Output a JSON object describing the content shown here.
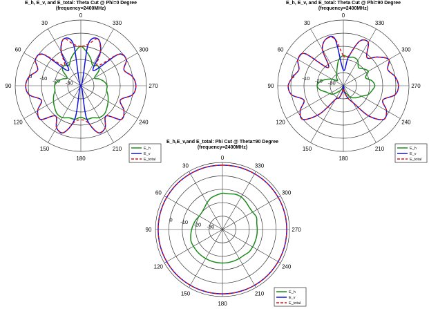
{
  "chart_data": [
    {
      "type": "polar-line",
      "title": "E_h, E_v, and E_total: Theta Cut @ Phi=0 Degree",
      "subtitle": "(frequency=2400MHz)",
      "angle_labels": [
        "0",
        "30",
        "60",
        "90",
        "120",
        "150",
        "180",
        "210",
        "240",
        "270",
        "300",
        "330"
      ],
      "radial_labels": [
        "0",
        "-10",
        "-20",
        "-30"
      ],
      "rlim": [
        -40,
        10
      ],
      "angle_direction": "counterclockwise, 0 at top",
      "grid": true,
      "legend_placement": "bottom-right",
      "angles_deg": [
        0,
        10,
        20,
        30,
        40,
        50,
        60,
        70,
        80,
        90,
        100,
        110,
        120,
        130,
        140,
        150,
        160,
        170,
        180,
        190,
        200,
        210,
        220,
        230,
        240,
        250,
        260,
        270,
        280,
        290,
        300,
        310,
        320,
        330,
        340,
        350
      ],
      "series": [
        {
          "name": "E_h",
          "color": "#1a8a1a",
          "dash": "solid",
          "values": [
            -10,
            -14,
            -18,
            -22,
            -20,
            -22,
            -28,
            -25,
            -22,
            -20,
            -20,
            -18,
            -16,
            -14,
            -12,
            -12,
            -14,
            -14,
            -16,
            -14,
            -14,
            -12,
            -12,
            -14,
            -16,
            -18,
            -20,
            -20,
            -22,
            -25,
            -28,
            -22,
            -20,
            -22,
            -18,
            -14
          ]
        },
        {
          "name": "E_v",
          "color": "#1010e0",
          "dash": "solid",
          "values": [
            -40,
            -8,
            -2,
            -10,
            -25,
            -3,
            0,
            -5,
            0,
            2,
            0,
            -8,
            -2,
            0,
            -10,
            -3,
            -2,
            -15,
            -40,
            -15,
            -2,
            -3,
            -10,
            0,
            -2,
            -8,
            0,
            2,
            0,
            -5,
            0,
            -3,
            -25,
            -10,
            -2,
            -8
          ]
        },
        {
          "name": "E_total",
          "color": "#e01010",
          "dash": "dashed",
          "values": [
            -10,
            -8,
            -2,
            -10,
            -20,
            -3,
            0,
            -5,
            0,
            2,
            0,
            -8,
            -2,
            0,
            -10,
            -3,
            -2,
            -12,
            -14,
            -12,
            -2,
            -3,
            -10,
            0,
            -2,
            -8,
            0,
            2,
            0,
            -5,
            0,
            -3,
            -20,
            -10,
            -2,
            -8
          ]
        }
      ]
    },
    {
      "type": "polar-line",
      "title": "E_h, E_v, and E_total: Theta Cut @ Phi=90 Degree",
      "subtitle": "(frequency=2400MHz)",
      "angle_labels": [
        "0",
        "30",
        "60",
        "90",
        "120",
        "150",
        "180",
        "210",
        "240",
        "270",
        "300",
        "330"
      ],
      "radial_labels": [
        "0",
        "-10",
        "-20",
        "-30"
      ],
      "rlim": [
        -40,
        10
      ],
      "angle_direction": "counterclockwise, 0 at top",
      "grid": true,
      "legend_placement": "bottom-right",
      "angles_deg": [
        0,
        10,
        20,
        30,
        40,
        50,
        60,
        70,
        80,
        90,
        100,
        110,
        120,
        130,
        140,
        150,
        160,
        170,
        180,
        190,
        200,
        210,
        220,
        230,
        240,
        250,
        260,
        270,
        280,
        290,
        300,
        310,
        320,
        330,
        340,
        350
      ],
      "series": [
        {
          "name": "E_h",
          "color": "#1a8a1a",
          "dash": "solid",
          "values": [
            -17,
            -20,
            -26,
            -30,
            -32,
            -34,
            -30,
            -26,
            -22,
            -20,
            -22,
            -26,
            -28,
            -30,
            -34,
            -36,
            -38,
            -40,
            -38,
            -36,
            -34,
            -30,
            -28,
            -26,
            -24,
            -20,
            -18,
            -16,
            -18,
            -22,
            -18,
            -20,
            -22,
            -18,
            -17,
            -18
          ]
        },
        {
          "name": "E_v",
          "color": "#1010e0",
          "dash": "solid",
          "values": [
            -28,
            -4,
            -2,
            -8,
            -22,
            -2,
            0,
            -4,
            -1,
            2,
            0,
            -8,
            -2,
            0,
            -12,
            -28,
            -30,
            -35,
            -40,
            -35,
            -30,
            -25,
            -10,
            0,
            -2,
            -8,
            0,
            2,
            0,
            -4,
            0,
            -6,
            -12,
            -2,
            -4,
            -18
          ]
        },
        {
          "name": "E_total",
          "color": "#e01010",
          "dash": "dashed",
          "values": [
            -17,
            -4,
            -2,
            -8,
            -22,
            -2,
            0,
            -4,
            -1,
            2,
            0,
            -8,
            -2,
            0,
            -12,
            -28,
            -30,
            -35,
            -38,
            -35,
            -30,
            -25,
            -10,
            0,
            -2,
            -8,
            0,
            2,
            0,
            -4,
            0,
            -6,
            -12,
            -2,
            -4,
            -17
          ]
        }
      ]
    },
    {
      "type": "polar-line",
      "title": "E_h,E_v,and E_total: Phi Cut @ Theta=90 Degree",
      "subtitle": "(frequency=2400MHz)",
      "angle_labels": [
        "0",
        "30",
        "60",
        "90",
        "120",
        "150",
        "180",
        "210",
        "240",
        "270",
        "300",
        "330"
      ],
      "radial_labels": [
        "0",
        "-10",
        "-20",
        "-30"
      ],
      "rlim": [
        -40,
        10
      ],
      "angle_direction": "counterclockwise, 0 at top",
      "grid": true,
      "legend_placement": "bottom-right",
      "angles_deg": [
        0,
        10,
        20,
        30,
        40,
        50,
        60,
        70,
        80,
        90,
        100,
        110,
        120,
        130,
        140,
        150,
        160,
        170,
        180,
        190,
        200,
        210,
        220,
        230,
        240,
        250,
        260,
        270,
        280,
        290,
        300,
        310,
        320,
        330,
        340,
        350
      ],
      "series": [
        {
          "name": "E_h",
          "color": "#1a8a1a",
          "dash": "solid",
          "values": [
            -13,
            -14,
            -15,
            -17,
            -19,
            -20,
            -20,
            -19,
            -18,
            -17,
            -16,
            -15,
            -15,
            -15,
            -15,
            -15,
            -15,
            -15,
            -15,
            -15,
            -15,
            -15,
            -15,
            -14,
            -14,
            -14,
            -14,
            -14,
            -14,
            -13,
            -14,
            -14,
            -13,
            -12,
            -12,
            -13
          ]
        },
        {
          "name": "E_v",
          "color": "#1010e0",
          "dash": "solid",
          "values": [
            8,
            8,
            8,
            8,
            8,
            8,
            8,
            8,
            8,
            8,
            8,
            8,
            8,
            8,
            8,
            8,
            8,
            8,
            8,
            8,
            8,
            8,
            8,
            8,
            8,
            8,
            8,
            8,
            8,
            8,
            8,
            8,
            8,
            8,
            8,
            8
          ]
        },
        {
          "name": "E_total",
          "color": "#e01010",
          "dash": "dashed",
          "values": [
            8,
            8,
            8,
            8,
            8,
            8,
            8,
            8,
            8,
            8,
            8,
            8,
            8,
            8,
            8,
            8,
            8,
            8,
            8,
            8,
            8,
            8,
            8,
            8,
            8,
            8,
            8,
            8,
            8,
            8,
            8,
            8,
            8,
            8,
            8,
            8
          ]
        }
      ]
    }
  ]
}
